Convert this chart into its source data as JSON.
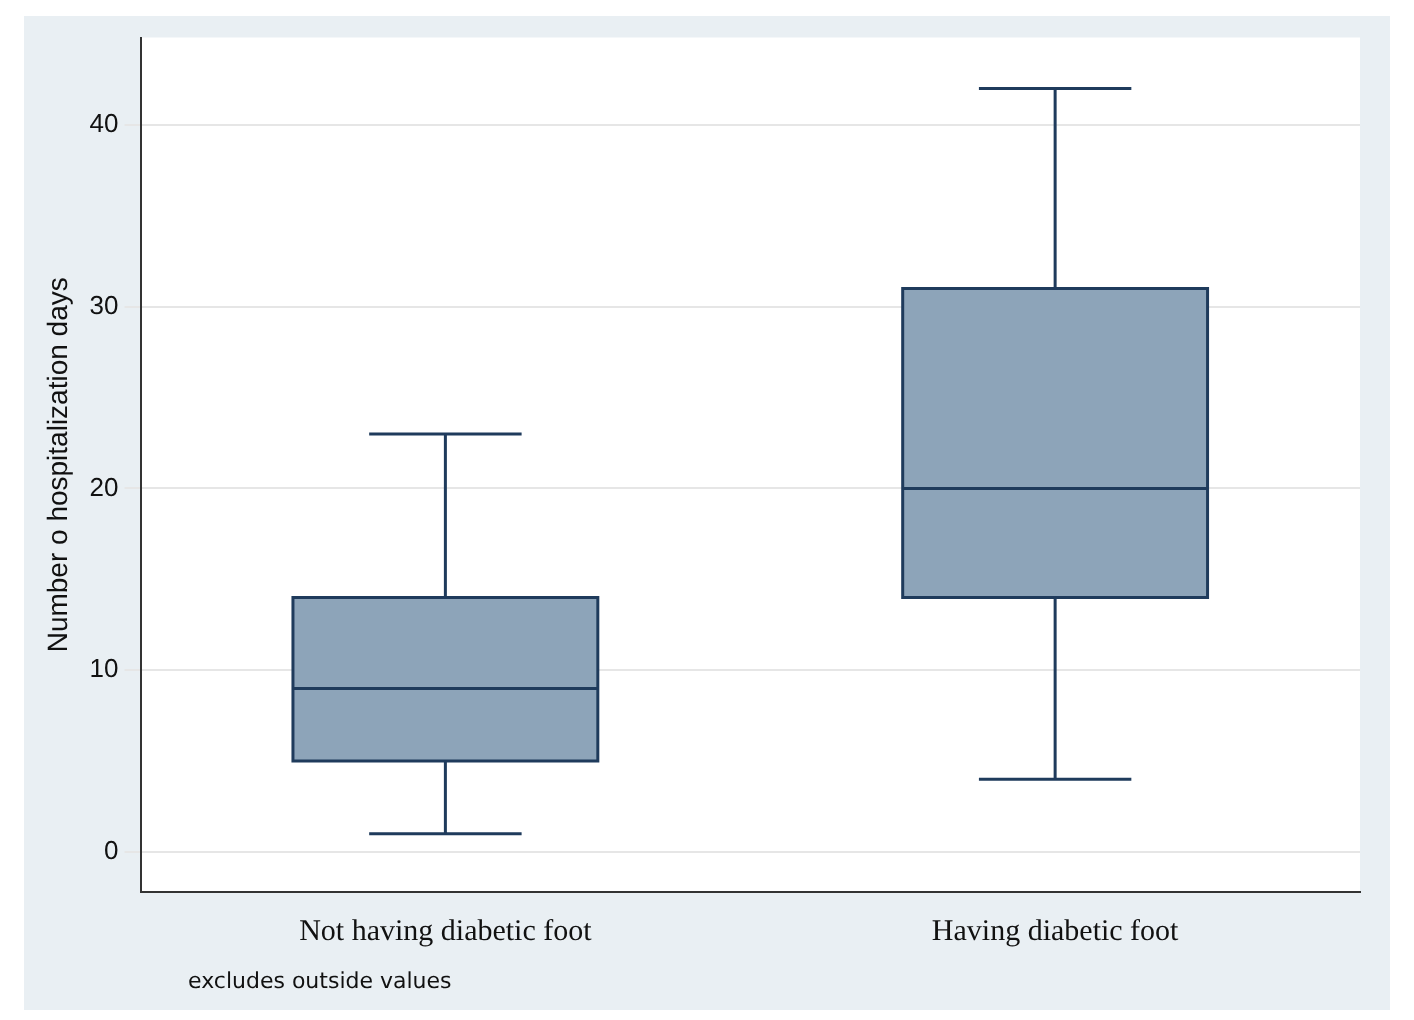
{
  "chart_data": {
    "type": "box",
    "ylabel": "Number o hospitalization days",
    "categories": [
      "Not having diabetic foot",
      "Having diabetic foot"
    ],
    "boxes": [
      {
        "low": 1,
        "q1": 5,
        "median": 9,
        "q3": 14,
        "high": 23
      },
      {
        "low": 4,
        "q1": 14,
        "median": 20,
        "q3": 31,
        "high": 42
      }
    ],
    "color": "#8da4b9",
    "ylim": [
      -2.2,
      44.8
    ],
    "yticks": [
      0,
      10,
      20,
      30,
      40
    ],
    "grid": "y",
    "legend": false,
    "annotations": [
      "excludes outside values"
    ]
  }
}
